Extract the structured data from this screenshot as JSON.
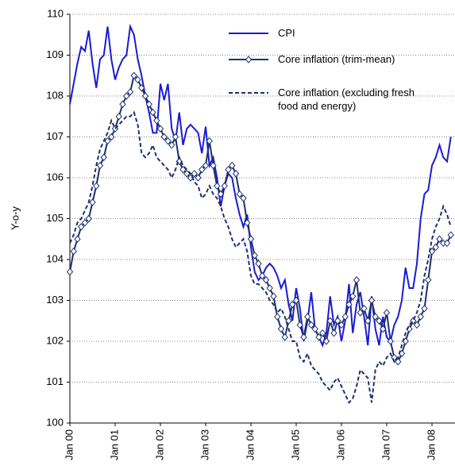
{
  "chart_data": {
    "type": "line",
    "y_label": "Y-o-y",
    "categories": [
      "Jan 00",
      null,
      null,
      null,
      null,
      null,
      null,
      null,
      null,
      null,
      null,
      null,
      "Jan 01",
      null,
      null,
      null,
      null,
      null,
      null,
      null,
      null,
      null,
      null,
      null,
      "Jan 02",
      null,
      null,
      null,
      null,
      null,
      null,
      null,
      null,
      null,
      null,
      null,
      "Jan 03",
      null,
      null,
      null,
      null,
      null,
      null,
      null,
      null,
      null,
      null,
      null,
      "Jan 04",
      null,
      null,
      null,
      null,
      null,
      null,
      null,
      null,
      null,
      null,
      null,
      "Jan 05",
      null,
      null,
      null,
      null,
      null,
      null,
      null,
      null,
      null,
      null,
      null,
      "Jan 06",
      null,
      null,
      null,
      null,
      null,
      null,
      null,
      null,
      null,
      null,
      null,
      "Jan 07",
      null,
      null,
      null,
      null,
      null,
      null,
      null,
      null,
      null,
      null,
      null,
      "Jan 08",
      null,
      null,
      null,
      null,
      null
    ],
    "ylim": [
      100,
      110
    ],
    "yticks": [
      100,
      101,
      102,
      103,
      104,
      105,
      106,
      107,
      108,
      109,
      110
    ],
    "grid": true,
    "series": [
      {
        "name": "CPI",
        "color": "#1a1ad6",
        "style": "solid",
        "marker": false,
        "values": [
          107.8,
          108.3,
          108.8,
          109.2,
          109.1,
          109.6,
          108.8,
          108.2,
          108.9,
          109.0,
          109.7,
          108.9,
          108.4,
          108.7,
          108.9,
          109.0,
          109.7,
          109.5,
          108.9,
          108.5,
          108.0,
          107.6,
          107.1,
          107.1,
          108.3,
          107.9,
          108.3,
          107.2,
          106.9,
          107.6,
          106.8,
          107.2,
          107.3,
          107.2,
          107.1,
          106.6,
          107.25,
          106.3,
          106.5,
          106.0,
          105.3,
          105.8,
          106.1,
          106.0,
          105.5,
          105.1,
          104.8,
          105.1,
          104.3,
          103.7,
          103.5,
          103.6,
          103.8,
          103.9,
          103.8,
          103.6,
          103.3,
          103.5,
          102.9,
          102.5,
          103.3,
          102.8,
          102.0,
          102.5,
          103.2,
          102.3,
          102.1,
          101.9,
          102.2,
          103.1,
          102.4,
          102.6,
          102.0,
          102.5,
          103.4,
          102.2,
          102.9,
          103.2,
          102.6,
          101.9,
          103.1,
          102.3,
          101.9,
          102.6,
          102.1,
          102.0,
          102.4,
          102.6,
          103.0,
          103.8,
          103.3,
          103.3,
          103.9,
          105.0,
          105.6,
          105.7,
          106.3,
          106.5,
          106.8,
          106.5,
          106.4,
          107.0
        ]
      },
      {
        "name": "Core inflation (trim-mean)",
        "color": "#1f2f6e",
        "style": "solid",
        "marker": true,
        "values": [
          103.7,
          104.2,
          104.5,
          104.8,
          104.9,
          105.0,
          105.4,
          105.8,
          106.3,
          106.5,
          106.9,
          107.0,
          107.2,
          107.5,
          107.8,
          108.0,
          108.1,
          108.5,
          108.4,
          108.2,
          108.0,
          107.8,
          107.6,
          107.4,
          107.2,
          107.0,
          106.9,
          106.8,
          107.0,
          106.4,
          106.2,
          106.1,
          106.0,
          106.1,
          106.0,
          106.2,
          106.3,
          106.9,
          106.3,
          105.8,
          105.6,
          105.8,
          106.2,
          106.3,
          106.1,
          105.6,
          105.5,
          104.9,
          104.5,
          104.1,
          103.9,
          103.6,
          103.5,
          103.3,
          103.1,
          102.6,
          102.3,
          102.1,
          102.5,
          102.9,
          103.0,
          102.4,
          102.1,
          102.6,
          102.4,
          102.3,
          102.1,
          102.2,
          102.0,
          102.5,
          102.2,
          102.5,
          102.4,
          102.6,
          102.9,
          103.1,
          103.5,
          102.7,
          102.8,
          102.5,
          103.0,
          102.6,
          102.5,
          102.3,
          102.7,
          102.0,
          101.6,
          101.5,
          101.7,
          102.0,
          102.3,
          102.5,
          102.4,
          102.6,
          102.8,
          103.5,
          104.2,
          104.3,
          104.5,
          104.4,
          104.4,
          104.6
        ]
      },
      {
        "name": "Core inflation (excluding fresh food and energy)",
        "color": "#1f2f6e",
        "style": "dashed",
        "marker": false,
        "values": [
          104.4,
          104.6,
          104.9,
          105.0,
          105.2,
          105.4,
          105.8,
          106.3,
          106.7,
          106.9,
          107.1,
          107.4,
          107.2,
          107.3,
          107.4,
          107.5,
          107.5,
          107.6,
          107.3,
          106.6,
          106.5,
          106.6,
          106.8,
          106.5,
          106.4,
          106.3,
          106.2,
          106.0,
          106.2,
          106.5,
          106.3,
          106.2,
          106.1,
          105.9,
          105.8,
          105.5,
          105.6,
          105.8,
          105.6,
          105.5,
          105.3,
          105.0,
          104.8,
          104.5,
          104.3,
          104.4,
          104.5,
          104.2,
          103.6,
          103.4,
          103.4,
          103.3,
          103.2,
          103.0,
          102.9,
          102.7,
          102.8,
          102.6,
          102.3,
          102.0,
          102.0,
          101.6,
          101.5,
          101.7,
          101.4,
          101.3,
          101.2,
          101.0,
          100.9,
          100.8,
          101.0,
          101.1,
          100.9,
          100.7,
          100.5,
          100.6,
          100.9,
          101.3,
          101.2,
          101.1,
          100.5,
          101.3,
          101.5,
          101.4,
          101.6,
          101.7,
          101.5,
          101.6,
          101.9,
          102.2,
          102.4,
          102.5,
          102.7,
          103.0,
          103.6,
          104.0,
          104.5,
          104.8,
          105.0,
          105.3,
          105.1,
          104.8
        ]
      }
    ]
  }
}
